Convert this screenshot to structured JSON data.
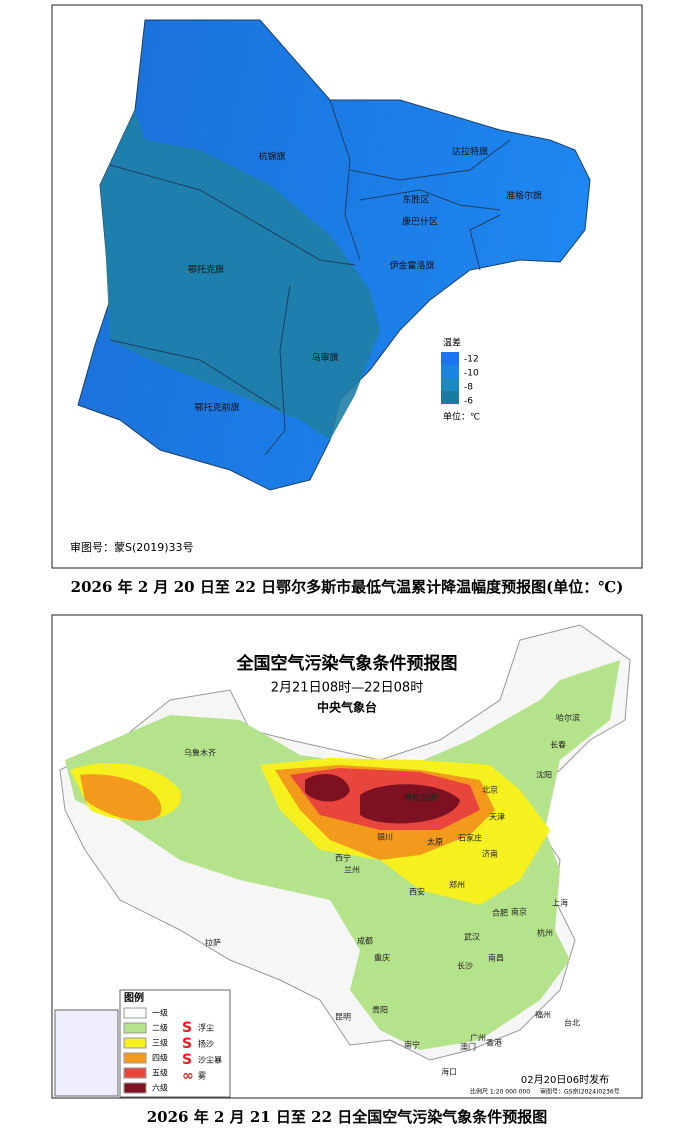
{
  "map1": {
    "labels": [
      "杭锦旗",
      "达拉特旗",
      "准格尔旗",
      "东胜区",
      "康巴什区",
      "伊金霍洛旗",
      "鄂托克旗",
      "乌审旗",
      "鄂托克前旗"
    ],
    "legend": {
      "title": "温差",
      "items": [
        "-12",
        "-10",
        "-8",
        "-6"
      ],
      "unit": "单位：℃"
    },
    "approval": "审图号：蒙S(2019)33号"
  },
  "caption1": "2026 年 2 月 20 日至 22 日鄂尔多斯市最低气温累计降温幅度预报图(单位：℃)",
  "map2": {
    "title": "全国空气污染气象条件预报图",
    "subtitle": "2月21日08时—22日08时",
    "issuer": "中央气象台",
    "cities": [
      "乌鲁木齐",
      "哈尔滨",
      "长春",
      "沈阳",
      "北京",
      "天津",
      "呼和浩特",
      "银川",
      "太原",
      "石家庄",
      "济南",
      "西宁",
      "兰州",
      "郑州",
      "西安",
      "合肥",
      "南京",
      "上海",
      "杭州",
      "成都",
      "重庆",
      "武汉",
      "南昌",
      "长沙",
      "拉萨",
      "贵阳",
      "昆明",
      "福州",
      "台北",
      "南宁",
      "广州",
      "澳门",
      "香港",
      "海口"
    ],
    "legend": {
      "title": "图例",
      "levels": [
        "一级",
        "二级",
        "三级",
        "四级",
        "五级",
        "六级"
      ],
      "symbols": [
        "浮尘",
        "扬沙",
        "沙尘暴",
        "雾"
      ]
    },
    "scale": "比例尺 1:20 000 000",
    "approval": "审图号：GS京(2024)0236号",
    "issued": "02月20日06时发布"
  },
  "caption2": "2026 年 2 月 21 日至 22 日全国空气污染气象条件预报图"
}
